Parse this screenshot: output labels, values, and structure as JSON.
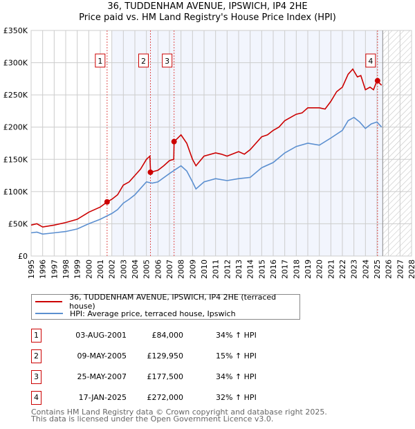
{
  "title": "36, TUDDENHAM AVENUE, IPSWICH, IP4 2HE",
  "subtitle": "Price paid vs. HM Land Registry's House Price Index (HPI)",
  "chart_data": {
    "type": "line",
    "title": "36, TUDDENHAM AVENUE, IPSWICH, IP4 2HE — Price paid vs. HM Land Registry's House Price Index (HPI)",
    "xlim": [
      1995,
      2028
    ],
    "ylim": [
      0,
      350000
    ],
    "x_ticks": [
      "1995",
      "1996",
      "1997",
      "1998",
      "1999",
      "2000",
      "2001",
      "2002",
      "2003",
      "2004",
      "2005",
      "2006",
      "2007",
      "2008",
      "2009",
      "2010",
      "2011",
      "2012",
      "2013",
      "2014",
      "2015",
      "2016",
      "2017",
      "2018",
      "2019",
      "2020",
      "2021",
      "2022",
      "2023",
      "2024",
      "2025",
      "2026",
      "2027",
      "2028"
    ],
    "y_ticks": [
      {
        "v": 0,
        "label": "£0"
      },
      {
        "v": 50000,
        "label": "£50K"
      },
      {
        "v": 100000,
        "label": "£100K"
      },
      {
        "v": 150000,
        "label": "£150K"
      },
      {
        "v": 200000,
        "label": "£200K"
      },
      {
        "v": 250000,
        "label": "£250K"
      },
      {
        "v": 300000,
        "label": "£300K"
      },
      {
        "v": 350000,
        "label": "£350K"
      }
    ],
    "grid": true,
    "shaded_from": 2002,
    "hatched_from": 2025.5,
    "series": [
      {
        "name": "36, TUDDENHAM AVENUE, IPSWICH, IP4 2HE (terraced house)",
        "color": "#cc0000",
        "x": [
          1995,
          1995.5,
          1996,
          1997,
          1998,
          1999,
          2000,
          2001,
          2001.6,
          2002,
          2002.5,
          2003,
          2003.5,
          2004,
          2004.5,
          2005,
          2005.3,
          2005.36,
          2006,
          2006.5,
          2007,
          2007.37,
          2007.4,
          2008,
          2008.5,
          2009,
          2009.3,
          2010,
          2011,
          2011.5,
          2012,
          2013,
          2013.5,
          2014,
          2015,
          2015.5,
          2016,
          2016.5,
          2017,
          2018,
          2018.5,
          2019,
          2020,
          2020.5,
          2021,
          2021.5,
          2022,
          2022.5,
          2022.9,
          2023.3,
          2023.6,
          2024,
          2024.4,
          2024.7,
          2025,
          2025.4
        ],
        "y": [
          48000,
          50000,
          45000,
          48000,
          52000,
          57000,
          68000,
          76000,
          84000,
          88000,
          95000,
          110000,
          115000,
          125000,
          135000,
          150000,
          155000,
          130000,
          133000,
          140000,
          148000,
          150000,
          177500,
          188000,
          175000,
          150000,
          140000,
          155000,
          160000,
          158000,
          155000,
          162000,
          158000,
          165000,
          185000,
          188000,
          195000,
          200000,
          210000,
          220000,
          222000,
          230000,
          230000,
          228000,
          240000,
          255000,
          262000,
          282000,
          290000,
          278000,
          280000,
          258000,
          262000,
          258000,
          272000,
          265000
        ]
      },
      {
        "name": "HPI: Average price, terraced house, Ipswich",
        "color": "#5b8fd0",
        "x": [
          1995,
          1995.5,
          1996,
          1997,
          1998,
          1999,
          2000,
          2001,
          2002,
          2002.5,
          2003,
          2003.5,
          2004,
          2004.5,
          2005,
          2005.5,
          2006,
          2007,
          2008,
          2008.5,
          2009,
          2009.3,
          2010,
          2011,
          2012,
          2013,
          2014,
          2015,
          2016,
          2017,
          2018,
          2019,
          2020,
          2021,
          2022,
          2022.5,
          2023,
          2023.5,
          2024,
          2024.5,
          2025,
          2025.4
        ],
        "y": [
          36000,
          37000,
          34000,
          36000,
          38000,
          42000,
          50000,
          57000,
          66000,
          72000,
          82000,
          88000,
          95000,
          105000,
          115000,
          113000,
          115000,
          128000,
          140000,
          132000,
          115000,
          104000,
          115000,
          120000,
          117000,
          120000,
          122000,
          137000,
          145000,
          160000,
          170000,
          175000,
          172000,
          183000,
          195000,
          210000,
          215000,
          208000,
          198000,
          205000,
          208000,
          200000
        ]
      }
    ],
    "sales": [
      {
        "n": "1",
        "x": 2001.59,
        "price": 84000
      },
      {
        "n": "2",
        "x": 2005.35,
        "price": 129950
      },
      {
        "n": "3",
        "x": 2007.4,
        "price": 177500
      },
      {
        "n": "4",
        "x": 2025.05,
        "price": 272000
      }
    ]
  },
  "legend": {
    "items": [
      {
        "label": "36, TUDDENHAM AVENUE, IPSWICH, IP4 2HE (terraced house)",
        "color": "#cc0000"
      },
      {
        "label": "HPI: Average price, terraced house, Ipswich",
        "color": "#5b8fd0"
      }
    ]
  },
  "transactions": [
    {
      "n": "1",
      "date": "03-AUG-2001",
      "price": "£84,000",
      "hpi": "34% ↑ HPI"
    },
    {
      "n": "2",
      "date": "09-MAY-2005",
      "price": "£129,950",
      "hpi": "15% ↑ HPI"
    },
    {
      "n": "3",
      "date": "25-MAY-2007",
      "price": "£177,500",
      "hpi": "34% ↑ HPI"
    },
    {
      "n": "4",
      "date": "17-JAN-2025",
      "price": "£272,000",
      "hpi": "32% ↑ HPI"
    }
  ],
  "footer": {
    "line1": "Contains HM Land Registry data © Crown copyright and database right 2025.",
    "line2": "This data is licensed under the Open Government Licence v3.0."
  }
}
